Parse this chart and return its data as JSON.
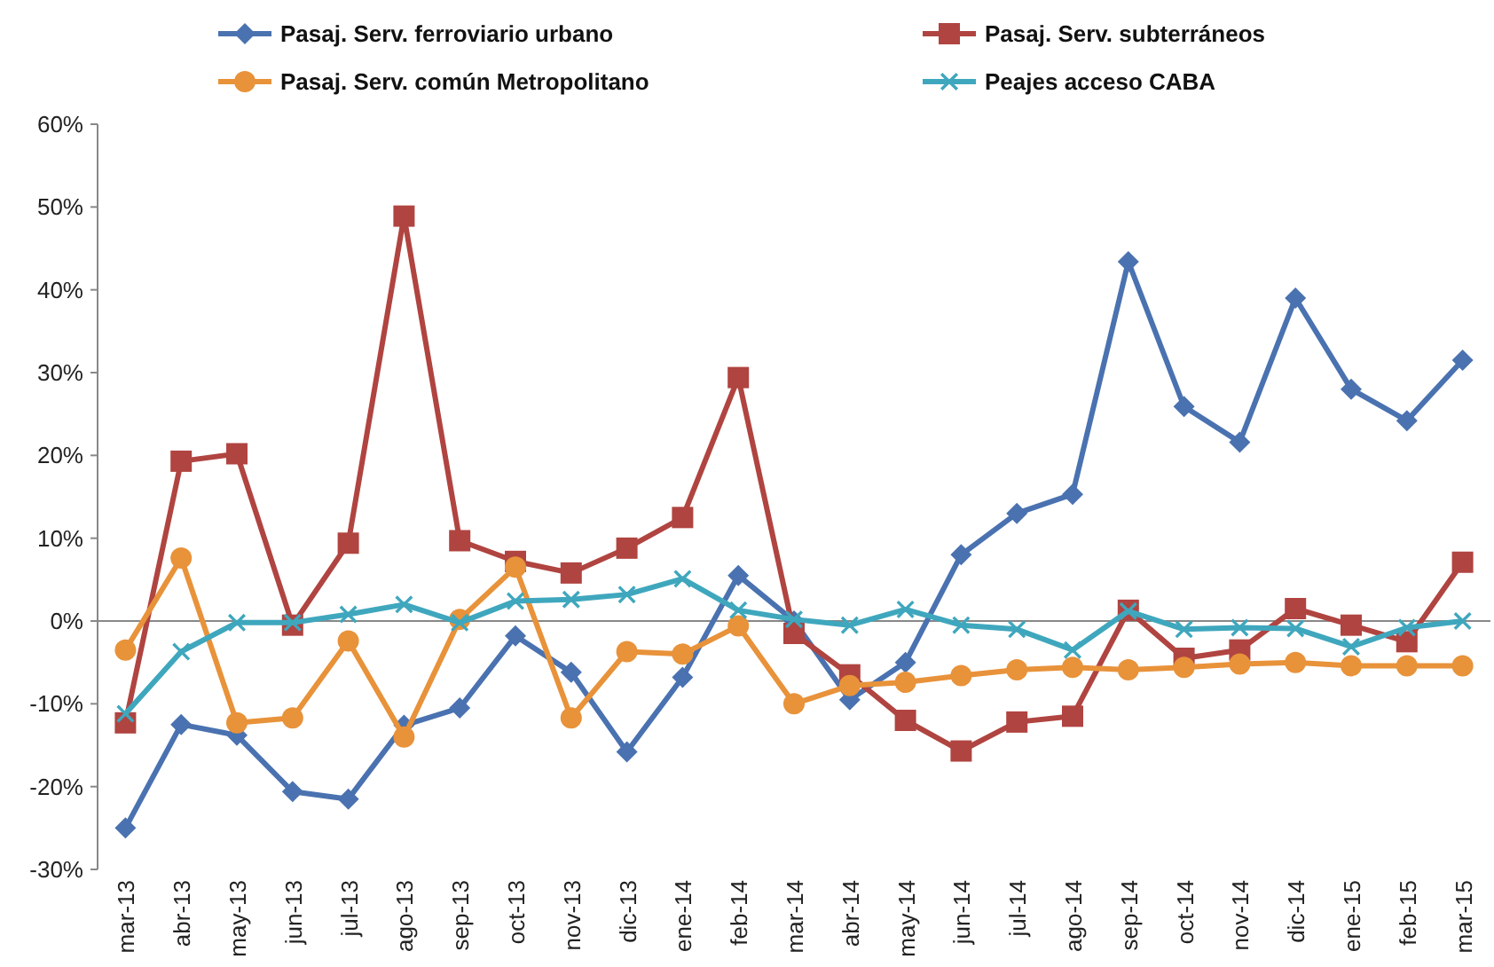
{
  "chart_data": {
    "type": "line",
    "categories": [
      "mar-13",
      "abr-13",
      "may-13",
      "jun-13",
      "jul-13",
      "ago-13",
      "sep-13",
      "oct-13",
      "nov-13",
      "dic-13",
      "ene-14",
      "feb-14",
      "mar-14",
      "abr-14",
      "may-14",
      "jun-14",
      "jul-14",
      "ago-14",
      "sep-14",
      "oct-14",
      "nov-14",
      "dic-14",
      "ene-15",
      "feb-15",
      "mar-15"
    ],
    "ylim": [
      -30,
      60
    ],
    "yticks": [
      {
        "value": -30,
        "label": "-30%"
      },
      {
        "value": -20,
        "label": "-20%"
      },
      {
        "value": -10,
        "label": "-10%"
      },
      {
        "value": 0,
        "label": "0%"
      },
      {
        "value": 10,
        "label": "10%"
      },
      {
        "value": 20,
        "label": "20%"
      },
      {
        "value": 30,
        "label": "30%"
      },
      {
        "value": 40,
        "label": "40%"
      },
      {
        "value": 50,
        "label": "50%"
      },
      {
        "value": 60,
        "label": "60%"
      }
    ],
    "grid": false,
    "legend": "top",
    "ref_lines": [
      {
        "axis": "y",
        "value": 0,
        "color": "#888888"
      }
    ],
    "line_style": "solid",
    "series": [
      {
        "name": "Pasaj. Serv. ferroviario urbano",
        "color": "#4a72b0",
        "marker": "diamond",
        "values": [
          -25,
          -12.5,
          -13.8,
          -20.6,
          -21.5,
          -12.6,
          -10.5,
          -1.8,
          -6.2,
          -15.8,
          -6.8,
          5.5,
          0,
          -9.5,
          -5,
          8,
          13,
          15.3,
          43.4,
          25.9,
          21.6,
          39,
          28,
          24.2,
          31.5
        ]
      },
      {
        "name": "Pasaj. Serv. subterráneos",
        "color": "#b04440",
        "marker": "square",
        "values": [
          -12.3,
          19.3,
          20.2,
          -0.5,
          9.4,
          48.9,
          9.7,
          7.2,
          5.8,
          8.8,
          12.5,
          29.4,
          -1.5,
          -6.5,
          -12,
          -15.7,
          -12.2,
          -11.5,
          1.3,
          -4.5,
          -3.5,
          1.5,
          -0.5,
          -2.5,
          7.1
        ]
      },
      {
        "name": "Pasaj. Serv. común Metropolitano",
        "color": "#e8923a",
        "marker": "circle",
        "values": [
          -3.5,
          7.6,
          -12.3,
          -11.7,
          -2.4,
          -14,
          0.2,
          6.5,
          -11.7,
          -3.7,
          -4,
          -0.6,
          -10,
          -7.8,
          -7.4,
          -6.6,
          -5.9,
          -5.6,
          -5.9,
          -5.6,
          -5.2,
          -5,
          -5.4,
          -5.4,
          -5.4
        ]
      },
      {
        "name": "Peajes acceso  CABA",
        "color": "#3fa7bd",
        "marker": "cross",
        "values": [
          -11.2,
          -3.7,
          -0.2,
          -0.2,
          0.8,
          2,
          -0.2,
          2.4,
          2.6,
          3.2,
          5.1,
          1.3,
          0.2,
          -0.5,
          1.4,
          -0.5,
          -1,
          -3.5,
          1.2,
          -1,
          -0.8,
          -0.9,
          -3.1,
          -0.8,
          0
        ]
      }
    ]
  }
}
